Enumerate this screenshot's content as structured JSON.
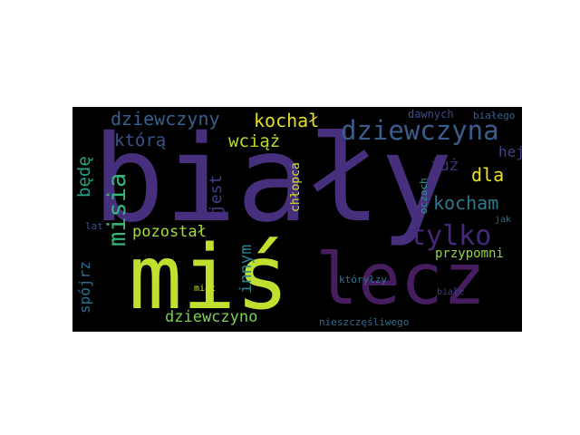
{
  "word_cloud": {
    "background": "#000000",
    "words": [
      {
        "text": "biały",
        "color": "#46307e",
        "vertical": false
      },
      {
        "text": "miś",
        "color": "#c0e030",
        "vertical": false
      },
      {
        "text": "lecz",
        "color": "#461d5e",
        "vertical": false
      },
      {
        "text": "dziewczyna",
        "color": "#3b5d8d",
        "vertical": false
      },
      {
        "text": "tylko",
        "color": "#482878",
        "vertical": false
      },
      {
        "text": "dziewczyny",
        "color": "#355f8d",
        "vertical": false
      },
      {
        "text": "kochał",
        "color": "#e2de26",
        "vertical": false
      },
      {
        "text": "którą",
        "color": "#3b528b",
        "vertical": false
      },
      {
        "text": "wciąż",
        "color": "#b5de2b",
        "vertical": false
      },
      {
        "text": "kocham",
        "color": "#2a788e",
        "vertical": false
      },
      {
        "text": "misia",
        "color": "#35b779",
        "vertical": true
      },
      {
        "text": "dla",
        "color": "#e7e419",
        "vertical": false
      },
      {
        "text": "już",
        "color": "#472d7b",
        "vertical": false
      },
      {
        "text": "hej",
        "color": "#414487",
        "vertical": false
      },
      {
        "text": "będę",
        "color": "#20a386",
        "vertical": true
      },
      {
        "text": "jest",
        "color": "#433e85",
        "vertical": true
      },
      {
        "text": "innym",
        "color": "#26828e",
        "vertical": true
      },
      {
        "text": "pozostał",
        "color": "#a5db36",
        "vertical": false
      },
      {
        "text": "dziewczyno",
        "color": "#79d151",
        "vertical": false
      },
      {
        "text": "spójrz",
        "color": "#2c718e",
        "vertical": true
      },
      {
        "text": "chłopca",
        "color": "#d8e219",
        "vertical": true
      },
      {
        "text": "przypomni",
        "color": "#8fd744",
        "vertical": false
      },
      {
        "text": "dawnych",
        "color": "#3e4c8a",
        "vertical": false
      },
      {
        "text": "białego",
        "color": "#33638d",
        "vertical": false
      },
      {
        "text": "oczach",
        "color": "#1f9e89",
        "vertical": true
      },
      {
        "text": "lat",
        "color": "#3a538b",
        "vertical": false
      },
      {
        "text": "jak",
        "color": "#2e6f8e",
        "vertical": false
      },
      {
        "text": "któryłzy",
        "color": "#2a768e",
        "vertical": false
      },
      {
        "text": "miał",
        "color": "#d0e11c",
        "vertical": false
      },
      {
        "text": "białe",
        "color": "#424086",
        "vertical": false
      },
      {
        "text": "nieszczęśliwego",
        "color": "#2f6c8e",
        "vertical": false
      }
    ]
  }
}
